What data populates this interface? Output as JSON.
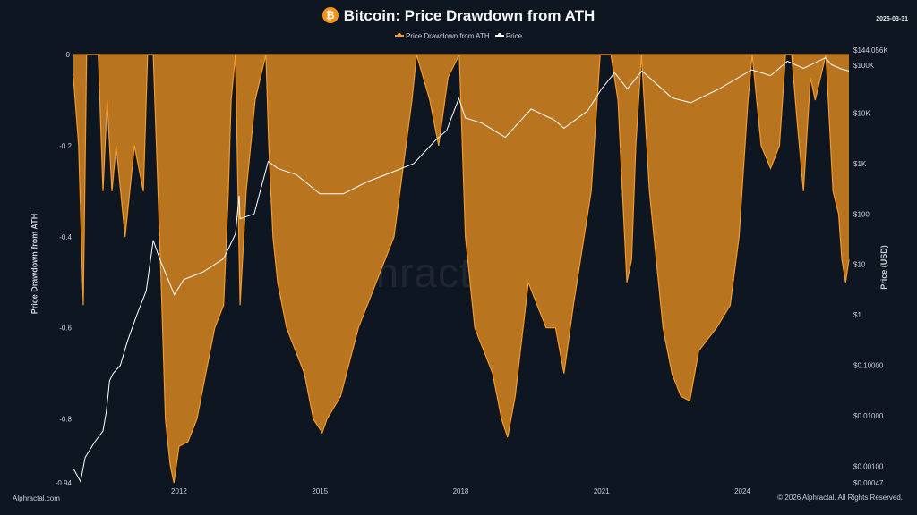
{
  "header": {
    "title": "Bitcoin: Price Drawdown from ATH",
    "date": "2026-03-31",
    "logo_icon": "bitcoin-icon"
  },
  "footer": {
    "left": "Alphractal.com",
    "right": "© 2026 Alphractal. All Rights Reserved."
  },
  "watermark": "Alphractal",
  "colors": {
    "background": "#0e1622",
    "drawdown_fill": "#b8741f",
    "drawdown_line": "#f39a2c",
    "price": "#ffffff"
  },
  "chart_data": {
    "type": "area",
    "title": "Bitcoin: Price Drawdown from ATH",
    "legend": {
      "placement": "top",
      "entries": [
        "Price Drawdown from ATH",
        "Price"
      ]
    },
    "x_ticks": [
      "2012",
      "2015",
      "2018",
      "2021",
      "2024"
    ],
    "xlim": [
      2009.75,
      2026.27
    ],
    "y_left": {
      "label": "Price Drawdown from ATH",
      "range": [
        -0.94,
        0
      ],
      "ticks": [
        "0",
        "-0.2",
        "-0.4",
        "-0.6",
        "-0.8",
        "-0.94"
      ]
    },
    "y_right": {
      "label": "Price (USD)",
      "scale": "log",
      "range": [
        0.00047,
        144056
      ],
      "ticks": [
        "$144.056K",
        "$100K",
        "$10K",
        "$1K",
        "$100",
        "$10",
        "$1",
        "$0.10000",
        "$0.01000",
        "$0.00100",
        "$0.00047"
      ]
    },
    "grid": false,
    "series": [
      {
        "name": "Price Drawdown from ATH",
        "axis": "left",
        "points": [
          [
            2009.75,
            -0.05
          ],
          [
            2009.86,
            -0.2
          ],
          [
            2009.96,
            -0.55
          ],
          [
            2010.03,
            0
          ],
          [
            2010.28,
            0
          ],
          [
            2010.38,
            -0.3
          ],
          [
            2010.47,
            -0.1
          ],
          [
            2010.57,
            -0.3
          ],
          [
            2010.66,
            -0.2
          ],
          [
            2010.85,
            -0.4
          ],
          [
            2011.05,
            -0.2
          ],
          [
            2011.24,
            -0.3
          ],
          [
            2011.33,
            0
          ],
          [
            2011.45,
            0
          ],
          [
            2011.62,
            -0.5
          ],
          [
            2011.71,
            -0.8
          ],
          [
            2011.81,
            -0.9
          ],
          [
            2011.89,
            -0.94
          ],
          [
            2012.0,
            -0.86
          ],
          [
            2012.19,
            -0.85
          ],
          [
            2012.38,
            -0.8
          ],
          [
            2012.57,
            -0.7
          ],
          [
            2012.76,
            -0.6
          ],
          [
            2012.95,
            -0.55
          ],
          [
            2013.05,
            -0.3
          ],
          [
            2013.11,
            -0.1
          ],
          [
            2013.2,
            0
          ],
          [
            2013.3,
            -0.55
          ],
          [
            2013.43,
            -0.3
          ],
          [
            2013.62,
            -0.1
          ],
          [
            2013.85,
            0
          ],
          [
            2013.91,
            -0.2
          ],
          [
            2014.0,
            -0.4
          ],
          [
            2014.1,
            -0.5
          ],
          [
            2014.29,
            -0.6
          ],
          [
            2014.48,
            -0.65
          ],
          [
            2014.67,
            -0.7
          ],
          [
            2014.86,
            -0.8
          ],
          [
            2015.05,
            -0.83
          ],
          [
            2015.15,
            -0.8
          ],
          [
            2015.44,
            -0.75
          ],
          [
            2015.82,
            -0.6
          ],
          [
            2016.2,
            -0.5
          ],
          [
            2016.58,
            -0.4
          ],
          [
            2016.96,
            -0.1
          ],
          [
            2017.06,
            0
          ],
          [
            2017.34,
            -0.1
          ],
          [
            2017.53,
            -0.2
          ],
          [
            2017.73,
            -0.05
          ],
          [
            2017.97,
            0
          ],
          [
            2018.1,
            -0.4
          ],
          [
            2018.3,
            -0.6
          ],
          [
            2018.49,
            -0.65
          ],
          [
            2018.68,
            -0.7
          ],
          [
            2018.87,
            -0.8
          ],
          [
            2019.0,
            -0.84
          ],
          [
            2019.16,
            -0.75
          ],
          [
            2019.44,
            -0.5
          ],
          [
            2019.63,
            -0.55
          ],
          [
            2019.82,
            -0.6
          ],
          [
            2020.02,
            -0.6
          ],
          [
            2020.2,
            -0.7
          ],
          [
            2020.4,
            -0.55
          ],
          [
            2020.78,
            -0.3
          ],
          [
            2020.97,
            0
          ],
          [
            2021.2,
            0
          ],
          [
            2021.35,
            -0.1
          ],
          [
            2021.54,
            -0.5
          ],
          [
            2021.64,
            -0.45
          ],
          [
            2021.73,
            -0.2
          ],
          [
            2021.85,
            0
          ],
          [
            2022.02,
            -0.3
          ],
          [
            2022.31,
            -0.6
          ],
          [
            2022.5,
            -0.7
          ],
          [
            2022.69,
            -0.75
          ],
          [
            2022.88,
            -0.76
          ],
          [
            2023.07,
            -0.65
          ],
          [
            2023.45,
            -0.6
          ],
          [
            2023.74,
            -0.55
          ],
          [
            2023.93,
            -0.4
          ],
          [
            2024.12,
            -0.1
          ],
          [
            2024.21,
            0
          ],
          [
            2024.4,
            -0.2
          ],
          [
            2024.6,
            -0.25
          ],
          [
            2024.79,
            -0.2
          ],
          [
            2024.92,
            0
          ],
          [
            2025.05,
            0
          ],
          [
            2025.17,
            -0.15
          ],
          [
            2025.3,
            -0.3
          ],
          [
            2025.45,
            -0.05
          ],
          [
            2025.55,
            -0.1
          ],
          [
            2025.78,
            0
          ],
          [
            2025.93,
            -0.3
          ],
          [
            2026.05,
            -0.35
          ],
          [
            2026.12,
            -0.45
          ],
          [
            2026.2,
            -0.5
          ],
          [
            2026.27,
            -0.45
          ]
        ]
      },
      {
        "name": "Price",
        "axis": "right",
        "points": [
          [
            2009.75,
            0.0009
          ],
          [
            2009.9,
            0.0005
          ],
          [
            2010.0,
            0.0015
          ],
          [
            2010.2,
            0.003
          ],
          [
            2010.38,
            0.005
          ],
          [
            2010.45,
            0.012
          ],
          [
            2010.52,
            0.05
          ],
          [
            2010.6,
            0.07
          ],
          [
            2010.75,
            0.1
          ],
          [
            2010.9,
            0.3
          ],
          [
            2011.1,
            1
          ],
          [
            2011.3,
            3
          ],
          [
            2011.45,
            30
          ],
          [
            2011.6,
            12
          ],
          [
            2011.9,
            2.5
          ],
          [
            2012.1,
            5
          ],
          [
            2012.5,
            7
          ],
          [
            2012.95,
            13
          ],
          [
            2013.2,
            40
          ],
          [
            2013.28,
            230
          ],
          [
            2013.3,
            80
          ],
          [
            2013.6,
            100
          ],
          [
            2013.9,
            1100
          ],
          [
            2014.1,
            800
          ],
          [
            2014.5,
            600
          ],
          [
            2015.0,
            250
          ],
          [
            2015.5,
            250
          ],
          [
            2016.0,
            430
          ],
          [
            2016.5,
            650
          ],
          [
            2017.0,
            1000
          ],
          [
            2017.45,
            2800
          ],
          [
            2017.7,
            4500
          ],
          [
            2017.96,
            19500
          ],
          [
            2018.1,
            8000
          ],
          [
            2018.45,
            6300
          ],
          [
            2018.95,
            3300
          ],
          [
            2019.5,
            12000
          ],
          [
            2020.0,
            7200
          ],
          [
            2020.2,
            5000
          ],
          [
            2020.7,
            11000
          ],
          [
            2021.0,
            30000
          ],
          [
            2021.28,
            63000
          ],
          [
            2021.55,
            30000
          ],
          [
            2021.86,
            68000
          ],
          [
            2022.5,
            20000
          ],
          [
            2022.9,
            16000
          ],
          [
            2023.5,
            30000
          ],
          [
            2024.2,
            72000
          ],
          [
            2024.6,
            55000
          ],
          [
            2024.96,
            106000
          ],
          [
            2025.3,
            77000
          ],
          [
            2025.77,
            124000
          ],
          [
            2025.9,
            90000
          ],
          [
            2026.1,
            75000
          ],
          [
            2026.27,
            68000
          ]
        ]
      }
    ]
  }
}
